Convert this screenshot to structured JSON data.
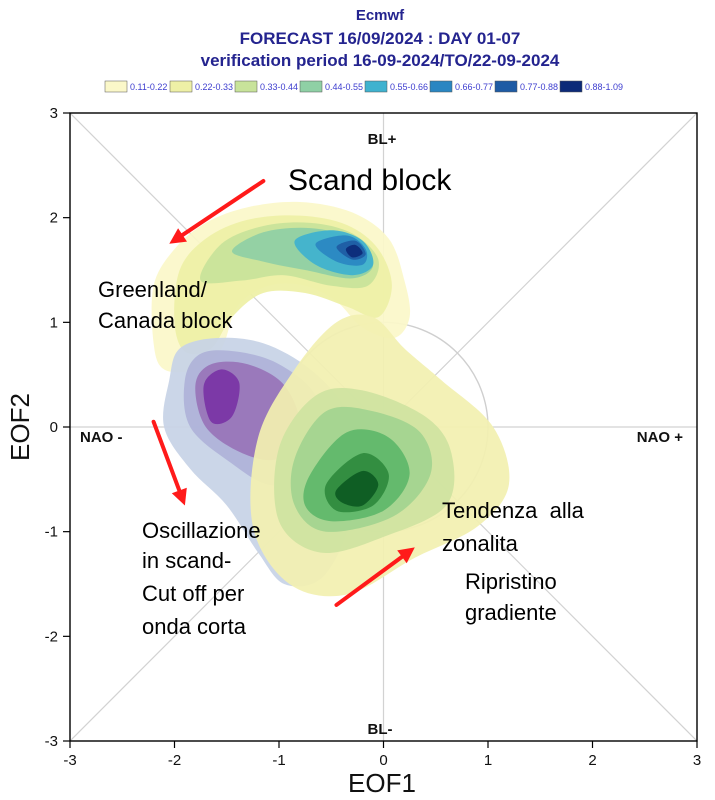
{
  "chart_data": {
    "type": "density-contour",
    "title": "Ecmwf",
    "subtitle_1": "FORECAST 16/09/2024 : DAY 01-07",
    "subtitle_2": "verification period 16-09-2024/TO/22-09-2024",
    "xlabel": "EOF1",
    "ylabel": "EOF2",
    "xlim": [
      -3,
      3
    ],
    "ylim": [
      -3,
      3
    ],
    "x_ticks": [
      -3,
      -2,
      -1,
      0,
      1,
      2,
      3
    ],
    "y_ticks": [
      -3,
      -2,
      -1,
      0,
      1,
      2,
      3
    ],
    "tick_labels": {
      "x": [
        "-3",
        "-2",
        "-1",
        "0",
        "1",
        "2",
        "3"
      ],
      "y": [
        "-3",
        "-2",
        "-1",
        "0",
        "1",
        "2",
        "3"
      ]
    },
    "regime_labels": {
      "top": "BL+",
      "bottom": "BL-",
      "left": "NAO -",
      "right": "NAO +"
    },
    "reference_circle_radius": 1,
    "legend": {
      "placement": "top",
      "entries": [
        {
          "label": "0.11-0.22",
          "color": "#fbf8c9"
        },
        {
          "label": "0.22-0.33",
          "color": "#eef0a6"
        },
        {
          "label": "0.33-0.44",
          "color": "#c8e39a"
        },
        {
          "label": "0.44-0.55",
          "color": "#8fd0a5"
        },
        {
          "label": "0.55-0.66",
          "color": "#3fb2cf"
        },
        {
          "label": "0.66-0.77",
          "color": "#2a86c2"
        },
        {
          "label": "0.77-0.88",
          "color": "#1e5ba4"
        },
        {
          "label": "0.88-1.09",
          "color": "#0c2a78"
        }
      ]
    },
    "density_clusters": [
      {
        "name": "Scand block / Greenland-Canada block arc",
        "colormap": "yellow-green-blue",
        "peak": {
          "x": -0.3,
          "y": 1.7,
          "density_class": "0.88-1.09"
        },
        "levels": [
          {
            "class": "0.11-0.22",
            "color": "#fbf8c9",
            "outline": [
              [
                -2.2,
                0.8
              ],
              [
                -2.2,
                1.35
              ],
              [
                -2.0,
                1.7
              ],
              [
                -1.7,
                1.95
              ],
              [
                -1.3,
                2.1
              ],
              [
                -0.8,
                2.15
              ],
              [
                -0.3,
                2.05
              ],
              [
                0.05,
                1.8
              ],
              [
                0.2,
                1.4
              ],
              [
                0.25,
                1.05
              ],
              [
                0.1,
                0.85
              ],
              [
                -0.2,
                0.95
              ],
              [
                -0.45,
                1.2
              ],
              [
                -0.75,
                1.35
              ],
              [
                -1.1,
                1.35
              ],
              [
                -1.4,
                1.15
              ],
              [
                -1.55,
                0.75
              ],
              [
                -1.8,
                0.55
              ],
              [
                -2.1,
                0.55
              ]
            ]
          },
          {
            "class": "0.22-0.33",
            "color": "#eef0a6",
            "outline": [
              [
                -2.0,
                1.0
              ],
              [
                -1.95,
                1.5
              ],
              [
                -1.7,
                1.8
              ],
              [
                -1.3,
                1.98
              ],
              [
                -0.8,
                2.02
              ],
              [
                -0.35,
                1.93
              ],
              [
                -0.05,
                1.7
              ],
              [
                0.08,
                1.35
              ],
              [
                -0.05,
                1.05
              ],
              [
                -0.35,
                1.15
              ],
              [
                -0.75,
                1.28
              ],
              [
                -1.15,
                1.28
              ],
              [
                -1.45,
                1.05
              ],
              [
                -1.65,
                0.75
              ],
              [
                -1.9,
                0.72
              ]
            ]
          },
          {
            "class": "0.33-0.44",
            "color": "#c8e39a",
            "outline": [
              [
                -1.75,
                1.4
              ],
              [
                -1.55,
                1.75
              ],
              [
                -1.15,
                1.92
              ],
              [
                -0.7,
                1.95
              ],
              [
                -0.3,
                1.85
              ],
              [
                -0.05,
                1.6
              ],
              [
                -0.15,
                1.35
              ],
              [
                -0.5,
                1.35
              ],
              [
                -0.95,
                1.45
              ],
              [
                -1.35,
                1.4
              ]
            ]
          },
          {
            "class": "0.44-0.55",
            "color": "#8fd0a5",
            "outline": [
              [
                -1.45,
                1.68
              ],
              [
                -1.15,
                1.86
              ],
              [
                -0.7,
                1.9
              ],
              [
                -0.3,
                1.8
              ],
              [
                -0.1,
                1.55
              ],
              [
                -0.3,
                1.42
              ],
              [
                -0.75,
                1.5
              ],
              [
                -1.15,
                1.58
              ]
            ]
          },
          {
            "class": "0.55-0.66",
            "color": "#3fb2cf",
            "outline": [
              [
                -0.85,
                1.78
              ],
              [
                -0.5,
                1.88
              ],
              [
                -0.2,
                1.78
              ],
              [
                -0.1,
                1.55
              ],
              [
                -0.3,
                1.45
              ],
              [
                -0.65,
                1.55
              ]
            ]
          },
          {
            "class": "0.66-0.77",
            "color": "#2a86c2",
            "outline": [
              [
                -0.65,
                1.75
              ],
              [
                -0.35,
                1.83
              ],
              [
                -0.17,
                1.7
              ],
              [
                -0.2,
                1.55
              ],
              [
                -0.45,
                1.58
              ]
            ]
          },
          {
            "class": "0.77-0.88",
            "color": "#1e5ba4",
            "outline": [
              [
                -0.45,
                1.72
              ],
              [
                -0.27,
                1.78
              ],
              [
                -0.17,
                1.65
              ],
              [
                -0.3,
                1.6
              ]
            ]
          },
          {
            "class": "0.88-1.09",
            "color": "#0c2a78",
            "outline": [
              [
                -0.36,
                1.7
              ],
              [
                -0.27,
                1.74
              ],
              [
                -0.2,
                1.66
              ],
              [
                -0.3,
                1.62
              ]
            ]
          }
        ]
      },
      {
        "name": "NAO- / Scand oscillation",
        "colormap": "blue-purple",
        "peak": {
          "x": -1.6,
          "y": 0.4,
          "density_class": "high"
        },
        "levels": [
          {
            "class": "low",
            "color": "#c7d3e6",
            "outline": [
              [
                -2.05,
                0.45
              ],
              [
                -1.95,
                0.75
              ],
              [
                -1.6,
                0.85
              ],
              [
                -1.15,
                0.8
              ],
              [
                -0.7,
                0.55
              ],
              [
                -0.35,
                0.15
              ],
              [
                -0.25,
                -0.35
              ],
              [
                -0.35,
                -1.0
              ],
              [
                -0.6,
                -1.45
              ],
              [
                -0.95,
                -1.5
              ],
              [
                -1.2,
                -1.2
              ],
              [
                -1.5,
                -0.75
              ],
              [
                -1.85,
                -0.4
              ],
              [
                -2.1,
                0.0
              ]
            ]
          },
          {
            "class": "mid-low",
            "color": "#aeb3d8",
            "outline": [
              [
                -1.9,
                0.45
              ],
              [
                -1.75,
                0.7
              ],
              [
                -1.4,
                0.72
              ],
              [
                -1.0,
                0.6
              ],
              [
                -0.65,
                0.3
              ],
              [
                -0.55,
                -0.2
              ],
              [
                -0.75,
                -0.5
              ],
              [
                -1.1,
                -0.55
              ],
              [
                -1.45,
                -0.35
              ],
              [
                -1.85,
                0.0
              ]
            ]
          },
          {
            "class": "mid",
            "color": "#9874b8",
            "outline": [
              [
                -1.8,
                0.4
              ],
              [
                -1.65,
                0.6
              ],
              [
                -1.3,
                0.6
              ],
              [
                -0.95,
                0.4
              ],
              [
                -0.8,
                0.0
              ],
              [
                -1.0,
                -0.3
              ],
              [
                -1.35,
                -0.25
              ],
              [
                -1.7,
                0.0
              ]
            ]
          },
          {
            "class": "high",
            "color": "#7a35a6",
            "outline": [
              [
                -1.72,
                0.4
              ],
              [
                -1.55,
                0.55
              ],
              [
                -1.38,
                0.42
              ],
              [
                -1.45,
                0.1
              ],
              [
                -1.65,
                0.05
              ]
            ]
          }
        ]
      },
      {
        "name": "Tendenza alla zonalita / Ripristino gradiente",
        "colormap": "yellow-green",
        "peak": {
          "x": -0.2,
          "y": -0.6,
          "density_class": "high"
        },
        "levels": [
          {
            "class": "low",
            "color": "#f2f0b0",
            "outline": [
              [
                -1.2,
                -0.1
              ],
              [
                -0.85,
                0.55
              ],
              [
                -0.45,
                1.0
              ],
              [
                -0.1,
                1.05
              ],
              [
                0.2,
                0.75
              ],
              [
                0.55,
                0.45
              ],
              [
                1.05,
                0.0
              ],
              [
                1.2,
                -0.55
              ],
              [
                0.9,
                -0.95
              ],
              [
                0.3,
                -1.25
              ],
              [
                -0.35,
                -1.6
              ],
              [
                -0.9,
                -1.5
              ],
              [
                -1.25,
                -0.95
              ]
            ]
          },
          {
            "class": "mid-low",
            "color": "#cfe3a0",
            "outline": [
              [
                -1.0,
                -0.2
              ],
              [
                -0.65,
                0.3
              ],
              [
                -0.2,
                0.35
              ],
              [
                0.4,
                0.1
              ],
              [
                0.65,
                -0.25
              ],
              [
                0.6,
                -0.75
              ],
              [
                0.0,
                -1.05
              ],
              [
                -0.6,
                -1.2
              ],
              [
                -1.0,
                -0.9
              ]
            ]
          },
          {
            "class": "mid",
            "color": "#a3d48f",
            "outline": [
              [
                -0.85,
                -0.3
              ],
              [
                -0.55,
                0.15
              ],
              [
                -0.1,
                0.15
              ],
              [
                0.35,
                -0.05
              ],
              [
                0.45,
                -0.45
              ],
              [
                0.1,
                -0.85
              ],
              [
                -0.55,
                -1.0
              ],
              [
                -0.85,
                -0.75
              ]
            ]
          },
          {
            "class": "mid-high",
            "color": "#5fb86a",
            "outline": [
              [
                -0.7,
                -0.45
              ],
              [
                -0.35,
                -0.05
              ],
              [
                0.05,
                -0.1
              ],
              [
                0.25,
                -0.45
              ],
              [
                0.0,
                -0.8
              ],
              [
                -0.5,
                -0.9
              ],
              [
                -0.75,
                -0.75
              ]
            ]
          },
          {
            "class": "high",
            "color": "#2f8b3d",
            "outline": [
              [
                -0.55,
                -0.55
              ],
              [
                -0.2,
                -0.25
              ],
              [
                0.05,
                -0.45
              ],
              [
                -0.1,
                -0.75
              ],
              [
                -0.45,
                -0.8
              ]
            ]
          },
          {
            "class": "peak",
            "color": "#0d5a22",
            "outline": [
              [
                -0.45,
                -0.6
              ],
              [
                -0.2,
                -0.42
              ],
              [
                -0.05,
                -0.55
              ],
              [
                -0.2,
                -0.75
              ],
              [
                -0.4,
                -0.72
              ]
            ]
          }
        ]
      }
    ],
    "annotations": [
      {
        "id": "scand-block",
        "lines": [
          "Scand block"
        ]
      },
      {
        "id": "greenland",
        "lines": [
          "Greenland/",
          "Canada block"
        ]
      },
      {
        "id": "oscillazione",
        "lines": [
          "Oscillazione",
          "in scand-",
          "Cut off per",
          "onda corta"
        ]
      },
      {
        "id": "tendenza",
        "lines": [
          "Tendenza  alla",
          "zonalita"
        ]
      },
      {
        "id": "ripristino",
        "lines": [
          "Ripristino",
          "gradiente"
        ]
      }
    ],
    "arrows": [
      {
        "id": "arrow-scand",
        "from": [
          -1.15,
          2.35
        ],
        "to": [
          -2.05,
          1.75
        ],
        "color": "#ff1a1a"
      },
      {
        "id": "arrow-oscill",
        "from": [
          -2.2,
          0.05
        ],
        "to": [
          -1.9,
          -0.75
        ],
        "color": "#ff1a1a"
      },
      {
        "id": "arrow-tendenza",
        "from": [
          -0.45,
          -1.7
        ],
        "to": [
          0.3,
          -1.15
        ],
        "color": "#ff1a1a"
      }
    ]
  }
}
